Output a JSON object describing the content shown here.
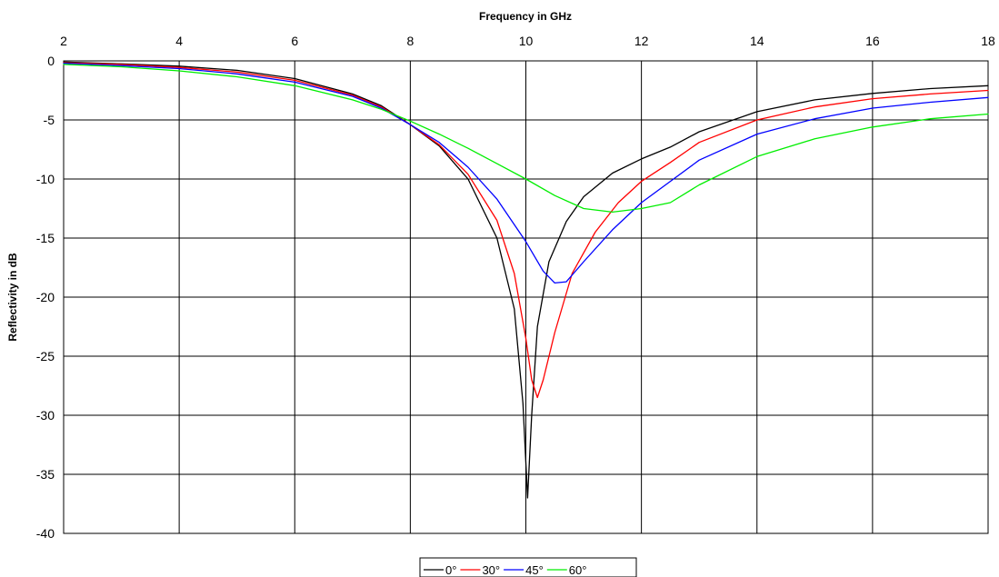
{
  "chart_data": {
    "type": "line",
    "title": "",
    "xlabel": "Frequency in GHz",
    "ylabel": "Reflectivity in dB",
    "xlim": [
      2,
      18
    ],
    "ylim": [
      -40,
      0
    ],
    "x_ticks": [
      2,
      4,
      6,
      8,
      10,
      12,
      14,
      16,
      18
    ],
    "y_ticks": [
      0,
      -5,
      -10,
      -15,
      -20,
      -25,
      -30,
      -35,
      -40
    ],
    "x_axis_position": "top",
    "grid": true,
    "legend_position": "bottom-center",
    "series": [
      {
        "name": "0°",
        "color": "#000000",
        "x": [
          2,
          3,
          4,
          5,
          6,
          7,
          7.5,
          8,
          8.5,
          9,
          9.5,
          9.8,
          9.95,
          10.03,
          10.1,
          10.2,
          10.4,
          10.7,
          11,
          11.5,
          12,
          12.5,
          13,
          14,
          15,
          16,
          17,
          18
        ],
        "y": [
          -0.1,
          -0.25,
          -0.45,
          -0.8,
          -1.5,
          -2.8,
          -3.8,
          -5.4,
          -7.2,
          -10,
          -15,
          -21,
          -29,
          -37,
          -30,
          -22.5,
          -17,
          -13.6,
          -11.5,
          -9.5,
          -8.3,
          -7.3,
          -6,
          -4.3,
          -3.3,
          -2.75,
          -2.35,
          -2.1
        ]
      },
      {
        "name": "30°",
        "color": "#ff0000",
        "x": [
          2,
          3,
          4,
          5,
          6,
          7,
          7.5,
          8,
          8.5,
          9,
          9.5,
          9.8,
          10,
          10.1,
          10.2,
          10.3,
          10.5,
          10.8,
          11.2,
          11.6,
          12,
          12.5,
          13,
          14,
          15,
          16,
          17,
          18
        ],
        "y": [
          -0.15,
          -0.3,
          -0.55,
          -0.95,
          -1.65,
          -2.9,
          -3.9,
          -5.4,
          -7.1,
          -9.6,
          -13.5,
          -18,
          -23.5,
          -27,
          -28.5,
          -27,
          -23,
          -18,
          -14.5,
          -12,
          -10.2,
          -8.6,
          -6.9,
          -5,
          -3.9,
          -3.2,
          -2.8,
          -2.5
        ]
      },
      {
        "name": "45°",
        "color": "#0000ff",
        "x": [
          2,
          3,
          4,
          5,
          6,
          7,
          7.5,
          8,
          8.5,
          9,
          9.5,
          10,
          10.3,
          10.5,
          10.7,
          11,
          11.5,
          12,
          12.5,
          13,
          14,
          15,
          16,
          17,
          18
        ],
        "y": [
          -0.2,
          -0.4,
          -0.65,
          -1.1,
          -1.8,
          -3,
          -4,
          -5.4,
          -6.9,
          -9,
          -11.7,
          -15.3,
          -17.8,
          -18.8,
          -18.7,
          -17,
          -14.3,
          -12,
          -10.2,
          -8.4,
          -6.2,
          -4.9,
          -4,
          -3.5,
          -3.1
        ]
      },
      {
        "name": "60°",
        "color": "#00ee00",
        "x": [
          2,
          3,
          4,
          5,
          6,
          7,
          7.5,
          8,
          8.5,
          9,
          9.5,
          10,
          10.5,
          11,
          11.5,
          12,
          12.5,
          13,
          14,
          15,
          16,
          17,
          18
        ],
        "y": [
          -0.3,
          -0.5,
          -0.85,
          -1.35,
          -2.1,
          -3.3,
          -4.1,
          -5.1,
          -6.2,
          -7.4,
          -8.7,
          -10,
          -11.4,
          -12.5,
          -12.8,
          -12.5,
          -12,
          -10.5,
          -8.1,
          -6.6,
          -5.6,
          -4.9,
          -4.5
        ]
      }
    ]
  }
}
